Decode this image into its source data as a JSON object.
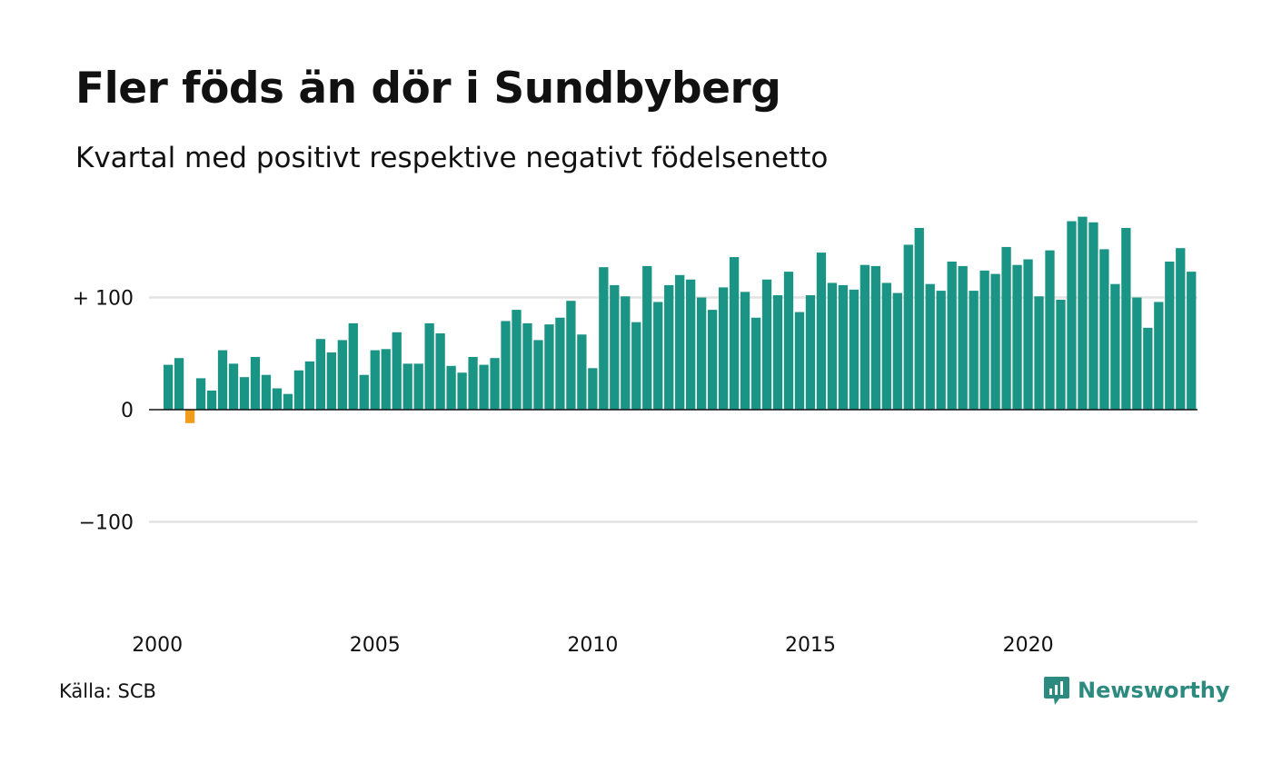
{
  "title": "Fler föds än dör i Sundbyberg",
  "subtitle": "Kvartal med positivt respektive negativt födelsenetto",
  "source": "Källa: SCB",
  "brand": {
    "name": "Newsworthy",
    "icon": "newsworthy-logo-icon"
  },
  "colors": {
    "positive": "#1a9585",
    "negative": "#f19c1a",
    "grid": "#e3e3e3",
    "zero_line": "#111111",
    "brand": "#2d8a7e"
  },
  "chart_data": {
    "type": "bar",
    "x_start": "2000 Q1",
    "frequency": "quarterly",
    "y_ticks": [
      {
        "value": 100,
        "label": "+ 100"
      },
      {
        "value": 0,
        "label": "0"
      },
      {
        "value": -100,
        "label": "−100"
      }
    ],
    "x_ticks": [
      "2000",
      "2005",
      "2010",
      "2015",
      "2020"
    ],
    "ylim": [
      -190,
      190
    ],
    "grid": true,
    "values": [
      0,
      40,
      46,
      -12,
      28,
      17,
      53,
      41,
      29,
      47,
      31,
      19,
      14,
      35,
      43,
      63,
      51,
      62,
      77,
      31,
      53,
      54,
      69,
      41,
      41,
      77,
      68,
      39,
      33,
      47,
      40,
      46,
      79,
      89,
      77,
      62,
      76,
      82,
      97,
      67,
      37,
      127,
      111,
      101,
      78,
      128,
      96,
      111,
      120,
      116,
      100,
      89,
      109,
      136,
      105,
      82,
      116,
      102,
      123,
      87,
      102,
      140,
      113,
      111,
      107,
      129,
      128,
      113,
      104,
      147,
      162,
      112,
      106,
      132,
      128,
      106,
      124,
      121,
      145,
      129,
      134,
      101,
      142,
      98,
      168,
      172,
      167,
      143,
      112,
      162,
      100,
      73,
      96,
      132,
      144,
      123
    ]
  }
}
